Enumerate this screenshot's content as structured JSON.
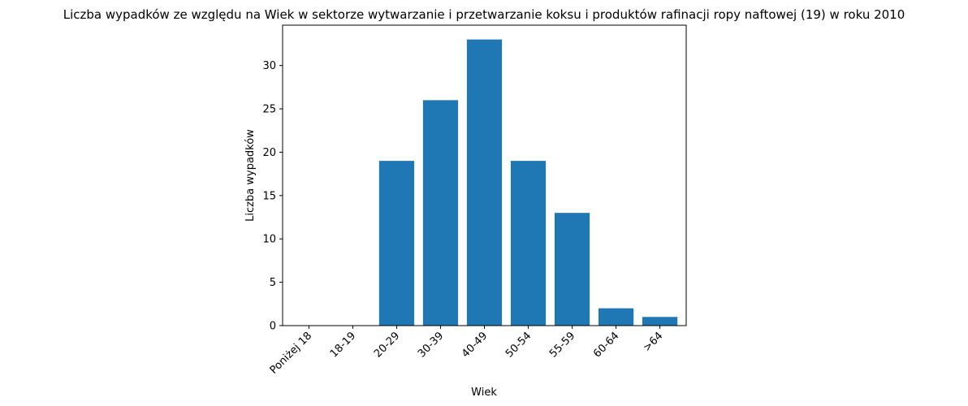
{
  "chart_data": {
    "type": "bar",
    "title": "Liczba wypadków ze względu na Wiek w sektorze wytwarzanie i przetwarzanie koksu i produktów rafinacji ropy naftowej  (19)   w roku 2010",
    "xlabel": "Wiek",
    "ylabel": "Liczba wypadków",
    "categories": [
      "Poniżej 18",
      "18-19",
      "20-29",
      "30-39",
      "40-49",
      "50-54",
      "55-59",
      "60-64",
      ">64"
    ],
    "values": [
      0,
      0,
      19,
      26,
      33,
      19,
      13,
      2,
      1
    ],
    "ylim": [
      0,
      34.65
    ],
    "yticks": [
      0,
      5,
      10,
      15,
      20,
      25,
      30
    ],
    "bar_color": "#1f77b4",
    "grid": false,
    "legend": "none"
  }
}
